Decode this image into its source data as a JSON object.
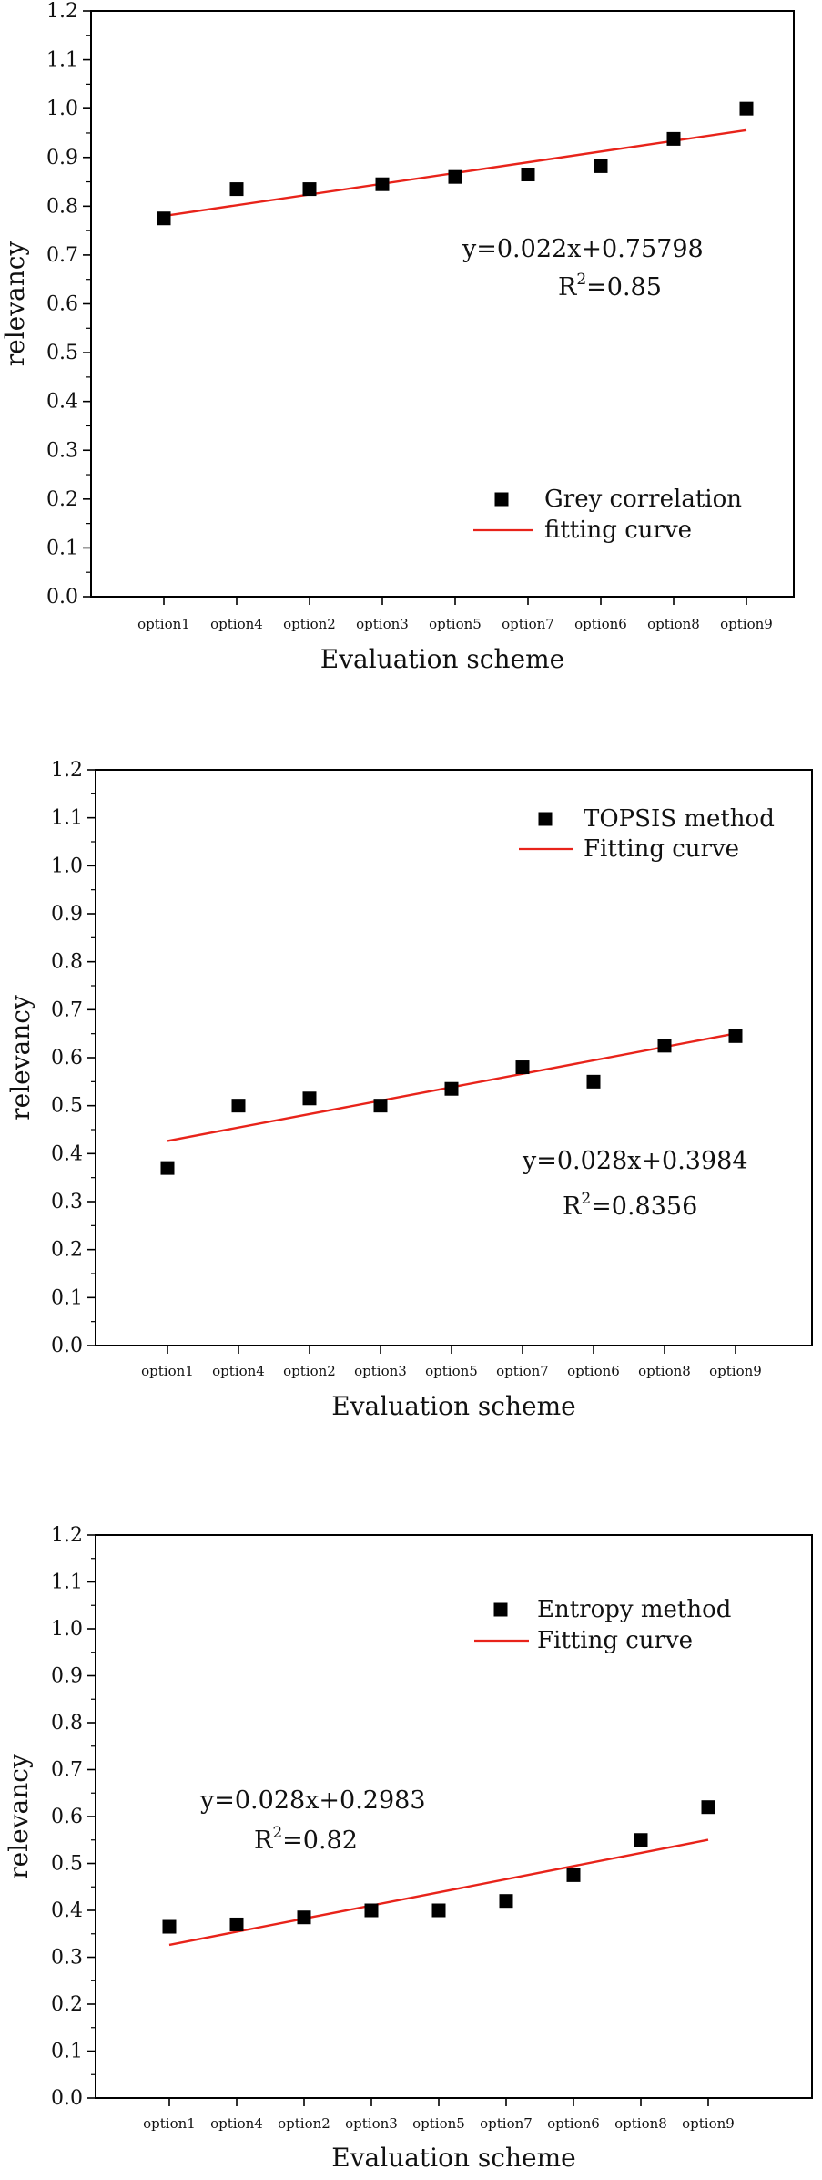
{
  "chart_data": [
    {
      "type": "scatter",
      "categories": [
        "option1",
        "option4",
        "option2",
        "option3",
        "option5",
        "option7",
        "option6",
        "option8",
        "option9"
      ],
      "series": [
        {
          "name": "Grey correlation",
          "values": [
            0.775,
            0.835,
            0.835,
            0.845,
            0.86,
            0.865,
            0.882,
            0.938,
            1.0
          ]
        }
      ],
      "fit": {
        "name": "fitting curve",
        "slope": 0.022,
        "intercept": 0.75798
      },
      "equation": "y=0.022x+0.75798",
      "r2_prefix": "R",
      "r2_sup": "2",
      "r2_value": "=0.85",
      "xlabel": "Evaluation scheme",
      "ylabel": "relevancy",
      "ylim": [
        0,
        1.2
      ],
      "yticks": [
        "0.0",
        "0.1",
        "0.2",
        "0.3",
        "0.4",
        "0.5",
        "0.6",
        "0.7",
        "0.8",
        "0.9",
        "1.0",
        "1.1",
        "1.2"
      ],
      "legend": "lower-right",
      "grid": false,
      "colors": {
        "marker": "#000000",
        "fit": "#e8231a"
      }
    },
    {
      "type": "scatter",
      "categories": [
        "option1",
        "option4",
        "option2",
        "option3",
        "option5",
        "option7",
        "option6",
        "option8",
        "option9"
      ],
      "series": [
        {
          "name": "TOPSIS method",
          "values": [
            0.37,
            0.5,
            0.515,
            0.5,
            0.535,
            0.58,
            0.55,
            0.625,
            0.645
          ]
        }
      ],
      "fit": {
        "name": "Fitting curve",
        "slope": 0.028,
        "intercept": 0.3984
      },
      "equation": "y=0.028x+0.3984",
      "r2_prefix": "R",
      "r2_sup": "2",
      "r2_value": "=0.8356",
      "xlabel": "Evaluation scheme",
      "ylabel": "relevancy",
      "ylim": [
        0,
        1.2
      ],
      "yticks": [
        "0.0",
        "0.1",
        "0.2",
        "0.3",
        "0.4",
        "0.5",
        "0.6",
        "0.7",
        "0.8",
        "0.9",
        "1.0",
        "1.1",
        "1.2"
      ],
      "legend": "top-right",
      "grid": false,
      "colors": {
        "marker": "#000000",
        "fit": "#e8231a"
      }
    },
    {
      "type": "scatter",
      "categories": [
        "option1",
        "option4",
        "option2",
        "option3",
        "option5",
        "option7",
        "option6",
        "option8",
        "option9"
      ],
      "series": [
        {
          "name": "Entropy method",
          "values": [
            0.365,
            0.37,
            0.385,
            0.4,
            0.4,
            0.42,
            0.475,
            0.55,
            0.62
          ]
        }
      ],
      "fit": {
        "name": "Fitting curve",
        "slope": 0.028,
        "intercept": 0.2983
      },
      "equation": "y=0.028x+0.2983",
      "r2_prefix": "R",
      "r2_sup": "2",
      "r2_value": "=0.82",
      "xlabel": "Evaluation scheme",
      "ylabel": "relevancy",
      "ylim": [
        0,
        1.2
      ],
      "yticks": [
        "0.0",
        "0.1",
        "0.2",
        "0.3",
        "0.4",
        "0.5",
        "0.6",
        "0.7",
        "0.8",
        "0.9",
        "1.0",
        "1.1",
        "1.2"
      ],
      "legend": "top-right",
      "grid": false,
      "colors": {
        "marker": "#000000",
        "fit": "#e8231a"
      }
    }
  ]
}
